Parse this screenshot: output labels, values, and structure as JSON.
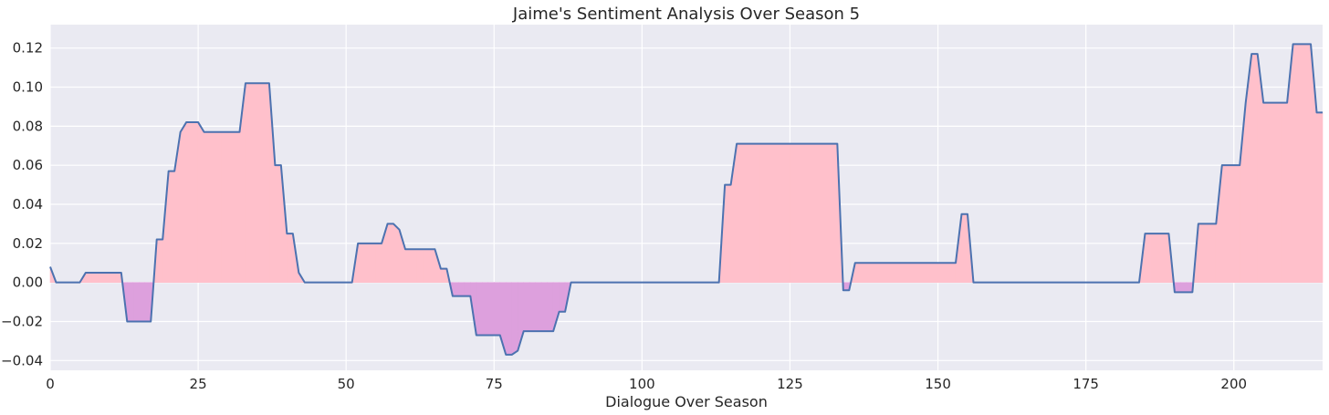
{
  "chart_data": {
    "type": "area",
    "title": "Jaime's Sentiment Analysis Over Season 5",
    "xlabel": "Dialogue Over Season",
    "ylabel": "",
    "xlim": [
      0,
      215
    ],
    "ylim": [
      -0.045,
      0.132
    ],
    "xticks": [
      0,
      25,
      50,
      75,
      100,
      125,
      150,
      175,
      200
    ],
    "yticks": [
      -0.04,
      -0.02,
      0.0,
      0.02,
      0.04,
      0.06,
      0.08,
      0.1,
      0.12
    ],
    "ytick_labels": [
      "−0.04",
      "−0.02",
      "0.00",
      "0.02",
      "0.04",
      "0.06",
      "0.08",
      "0.10",
      "0.12"
    ],
    "grid": true,
    "colors": {
      "background": "#eaeaf2",
      "grid": "#ffffff",
      "line": "#4c72b0",
      "positive_fill": "#ffc0cb",
      "negative_fill": "#dda0dd"
    },
    "series": [
      {
        "x": [
          0,
          1,
          2,
          3,
          4,
          5,
          6,
          7,
          8,
          9,
          10,
          11,
          12,
          13,
          14,
          15,
          16,
          17,
          18,
          19,
          20,
          21,
          22,
          23,
          24,
          25,
          26,
          27,
          28,
          29,
          30,
          31,
          32,
          33,
          34,
          35,
          36,
          37,
          38,
          39,
          40,
          41,
          42,
          43,
          44,
          45,
          46,
          47,
          48,
          49,
          50,
          51,
          52,
          53,
          54,
          55,
          56,
          57,
          58,
          59,
          60,
          61,
          62,
          63,
          64,
          65,
          66,
          67,
          68,
          69,
          70,
          71,
          72,
          73,
          74,
          75,
          76,
          77,
          78,
          79,
          80,
          81,
          82,
          83,
          84,
          85,
          86,
          87,
          88,
          89,
          90,
          100,
          110,
          112,
          113,
          114,
          115,
          116,
          117,
          120,
          125,
          130,
          133,
          134,
          135,
          136,
          137,
          140,
          145,
          150,
          152,
          153,
          154,
          155,
          156,
          157,
          160,
          170,
          180,
          184,
          185,
          186,
          187,
          188,
          189,
          190,
          191,
          192,
          193,
          194,
          195,
          196,
          197,
          198,
          199,
          200,
          201,
          202,
          203,
          204,
          205,
          206,
          207,
          208,
          209,
          210,
          211,
          212,
          213,
          214,
          215
        ],
        "values": [
          0.008,
          0.0,
          0.0,
          0.0,
          0.0,
          0.0,
          0.005,
          0.005,
          0.005,
          0.005,
          0.005,
          0.005,
          0.005,
          -0.02,
          -0.02,
          -0.02,
          -0.02,
          -0.02,
          0.022,
          0.022,
          0.057,
          0.057,
          0.077,
          0.082,
          0.082,
          0.082,
          0.077,
          0.077,
          0.077,
          0.077,
          0.077,
          0.077,
          0.077,
          0.102,
          0.102,
          0.102,
          0.102,
          0.102,
          0.06,
          0.06,
          0.025,
          0.025,
          0.005,
          0.0,
          0.0,
          0.0,
          0.0,
          0.0,
          0.0,
          0.0,
          0.0,
          0.0,
          0.02,
          0.02,
          0.02,
          0.02,
          0.02,
          0.03,
          0.03,
          0.027,
          0.017,
          0.017,
          0.017,
          0.017,
          0.017,
          0.017,
          0.007,
          0.007,
          -0.007,
          -0.007,
          -0.007,
          -0.007,
          -0.027,
          -0.027,
          -0.027,
          -0.027,
          -0.027,
          -0.037,
          -0.037,
          -0.035,
          -0.025,
          -0.025,
          -0.025,
          -0.025,
          -0.025,
          -0.025,
          -0.015,
          -0.015,
          0.0,
          0.0,
          0.0,
          0.0,
          0.0,
          0.0,
          0.0,
          0.05,
          0.05,
          0.071,
          0.071,
          0.071,
          0.071,
          0.071,
          0.071,
          -0.004,
          -0.004,
          0.01,
          0.01,
          0.01,
          0.01,
          0.01,
          0.01,
          0.01,
          0.035,
          0.035,
          0.0,
          0.0,
          0.0,
          0.0,
          0.0,
          0.0,
          0.025,
          0.025,
          0.025,
          0.025,
          0.025,
          -0.005,
          -0.005,
          -0.005,
          -0.005,
          0.03,
          0.03,
          0.03,
          0.03,
          0.06,
          0.06,
          0.06,
          0.06,
          0.092,
          0.117,
          0.117,
          0.092,
          0.092,
          0.092,
          0.092,
          0.092,
          0.122,
          0.122,
          0.122,
          0.122,
          0.087,
          0.087
        ]
      }
    ]
  }
}
